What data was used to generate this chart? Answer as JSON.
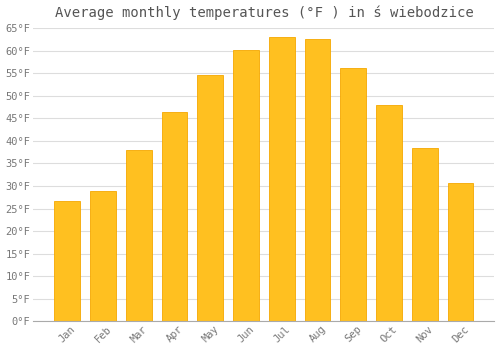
{
  "months": [
    "Jan",
    "Feb",
    "Mar",
    "Apr",
    "May",
    "Jun",
    "Jul",
    "Aug",
    "Sep",
    "Oct",
    "Nov",
    "Dec"
  ],
  "values": [
    26.6,
    29.0,
    38.0,
    46.5,
    54.7,
    60.1,
    63.0,
    62.6,
    56.1,
    48.0,
    38.5,
    30.7
  ],
  "bar_color": "#FFC020",
  "bar_edge_color": "#F5A800",
  "background_color": "#FFFFFF",
  "plot_bg_color": "#FFFFFF",
  "grid_color": "#DDDDDD",
  "title": "Average monthly temperatures (°F ) in ś wiebodzice",
  "title_fontsize": 10,
  "tick_label_fontsize": 7.5,
  "title_color": "#555555",
  "tick_color": "#777777",
  "ylim": [
    0,
    65
  ],
  "yticks": [
    0,
    5,
    10,
    15,
    20,
    25,
    30,
    35,
    40,
    45,
    50,
    55,
    60,
    65
  ]
}
